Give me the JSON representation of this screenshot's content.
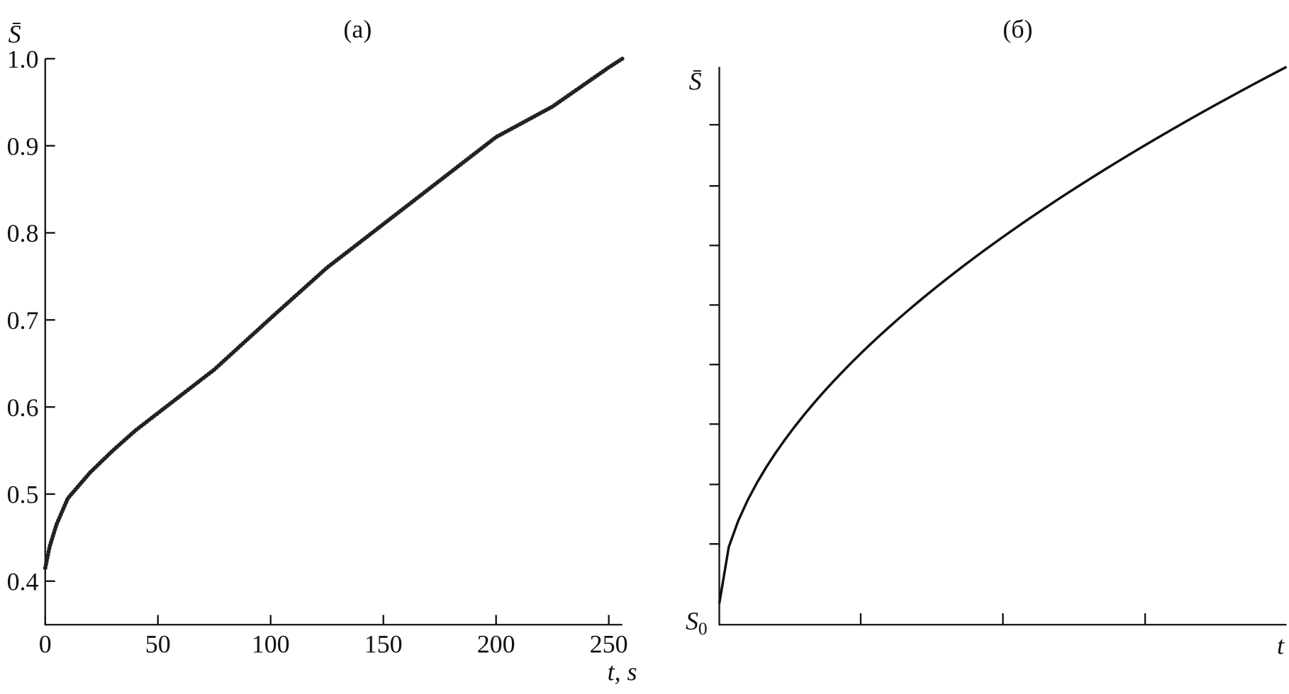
{
  "chart_data": [
    {
      "type": "line",
      "title": "(a)",
      "y_label": "S̄",
      "x_label": "t, s",
      "x": [
        0,
        2,
        5,
        10,
        15,
        20,
        30,
        40,
        50,
        60,
        75,
        100,
        125,
        150,
        175,
        200,
        225,
        250,
        256
      ],
      "series": [
        {
          "color": "#222222",
          "values": [
            0.415,
            0.44,
            0.465,
            0.495,
            0.51,
            0.525,
            0.55,
            0.573,
            0.593,
            0.613,
            0.643,
            0.702,
            0.76,
            0.81,
            0.86,
            0.91,
            0.945,
            0.99,
            1.0
          ]
        }
      ],
      "xlim": [
        0,
        256
      ],
      "ylim": [
        0.35,
        1.0
      ],
      "xticks": [
        0,
        50,
        100,
        150,
        200,
        250
      ],
      "yticks": [
        0.4,
        0.5,
        0.6,
        0.7,
        0.8,
        0.9,
        {
          "value": 1.0,
          "label": "1.0"
        }
      ]
    },
    {
      "type": "schematic",
      "title": "(б)",
      "y_label_top": "S̄",
      "y_label_bottom": "S",
      "y_label_bottom_sub": "0",
      "x_label": "t"
    }
  ]
}
